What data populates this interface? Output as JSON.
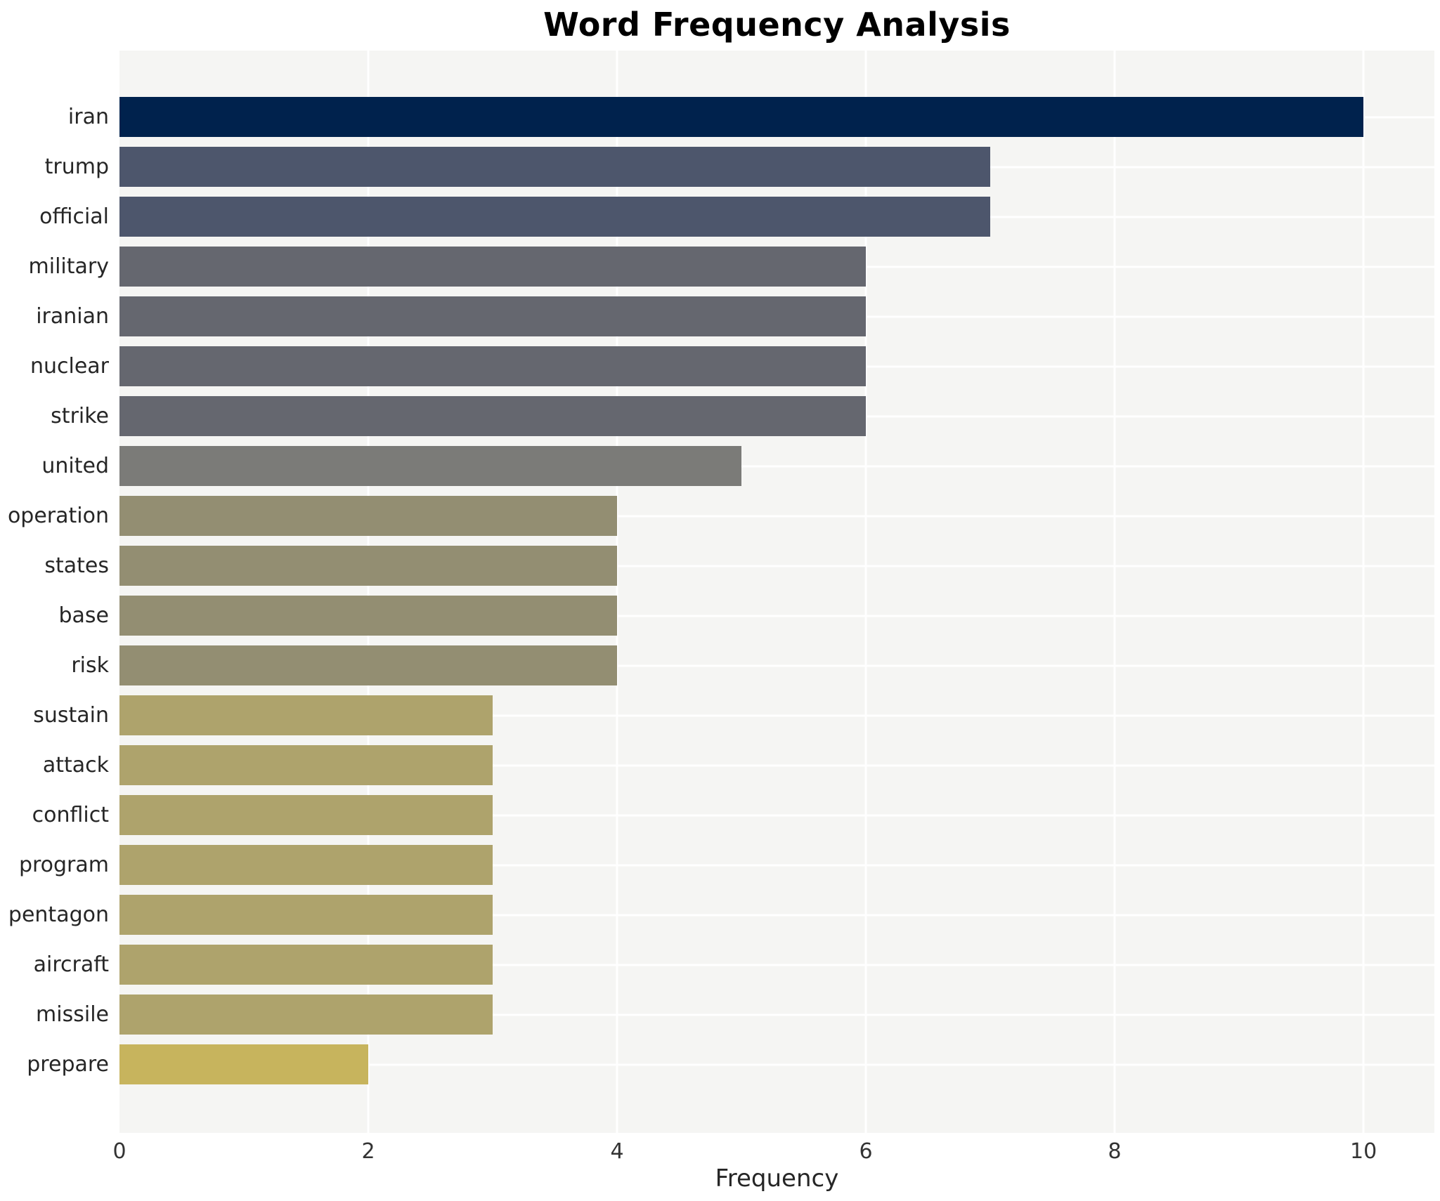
{
  "page": {
    "background": "#ffffff"
  },
  "chart_data": {
    "type": "bar",
    "orientation": "horizontal",
    "title": "Word Frequency Analysis",
    "xlabel": "Frequency",
    "ylabel": "",
    "categories": [
      "iran",
      "trump",
      "official",
      "military",
      "iranian",
      "nuclear",
      "strike",
      "united",
      "operation",
      "states",
      "base",
      "risk",
      "sustain",
      "attack",
      "conflict",
      "program",
      "pentagon",
      "aircraft",
      "missile",
      "prepare"
    ],
    "values": [
      10,
      7,
      7,
      6,
      6,
      6,
      6,
      5,
      4,
      4,
      4,
      4,
      3,
      3,
      3,
      3,
      3,
      3,
      3,
      2
    ],
    "bar_colors": [
      "#00224d",
      "#4d566c",
      "#4d566c",
      "#65676f",
      "#65676f",
      "#65676f",
      "#65676f",
      "#7b7b78",
      "#938e72",
      "#938e72",
      "#938e72",
      "#938e72",
      "#aea36c",
      "#aea36c",
      "#aea36c",
      "#aea36c",
      "#aea36c",
      "#aea36c",
      "#aea36c",
      "#c7b45d"
    ],
    "xticks": [
      0,
      2,
      4,
      6,
      8,
      10
    ],
    "xlim": [
      0,
      10.57
    ],
    "grid": true,
    "legend": "none",
    "plot_background": "#f5f5f3",
    "grid_color": "#ffffff",
    "title_color": "#000000",
    "label_color": "#262626",
    "tick_color": "#333333"
  }
}
